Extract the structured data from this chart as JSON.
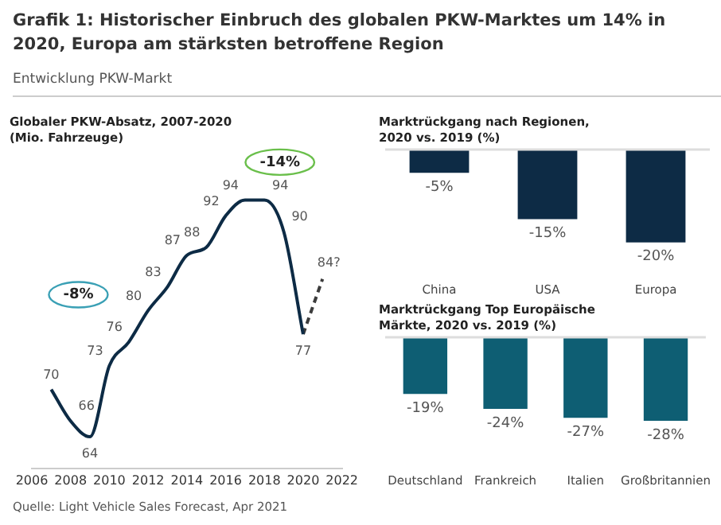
{
  "chart_data": [
    {
      "type": "other",
      "title": "Grafik 1: Historischer Einbruch des globalen PKW-Marktes um 14% in 2020, Europa am stärksten betroffene Region",
      "subtitle": "Entwicklung PKW-Markt"
    },
    {
      "type": "line",
      "title": "Globaler PKW-Absatz, 2007-2020",
      "subtitle": "(Mio. Fahrzeuge)",
      "x": [
        2007,
        2008,
        2009,
        2010,
        2011,
        2012,
        2013,
        2014,
        2015,
        2016,
        2017,
        2018,
        2019,
        2020
      ],
      "xlim": [
        2006,
        2022
      ],
      "xticks": [
        2006,
        2008,
        2010,
        2012,
        2014,
        2016,
        2018,
        2020,
        2022
      ],
      "grid": false,
      "legend": false,
      "marker": "none",
      "data_labels": true,
      "series": [
        {
          "color": "#0d2b45",
          "values": [
            70,
            66,
            64,
            73,
            76,
            80,
            83,
            87,
            88,
            92,
            94,
            94,
            90,
            77
          ]
        },
        {
          "color": "#3c3c3c",
          "x": [
            2020,
            2021
          ],
          "values": [
            77,
            84
          ],
          "line_style": "dashed",
          "value_labels": [
            null,
            "84?"
          ]
        }
      ],
      "annotations": [
        "-8%",
        "-14%"
      ]
    },
    {
      "type": "bar",
      "title": "Marktrückgang nach Regionen, 2020 vs. 2019 (%)",
      "categories": [
        "China",
        "USA",
        "Europa"
      ],
      "values": [
        -5,
        -15,
        -20
      ],
      "color": "#0d2b45",
      "value_labels": [
        "-5%",
        "-15%",
        "-20%"
      ],
      "grid": false,
      "legend": false
    },
    {
      "type": "bar",
      "title": "Marktrückgang Top Europäische Märkte, 2020 vs. 2019 (%)",
      "categories": [
        "Deutschland",
        "Frankreich",
        "Italien",
        "Großbritannien"
      ],
      "values": [
        -19,
        -24,
        -27,
        -28
      ],
      "color": "#0e5e73",
      "value_labels": [
        "-19%",
        "-24%",
        "-27%",
        "-28%"
      ],
      "grid": false,
      "legend": false
    },
    {
      "type": "other",
      "annotations": [
        "Quelle: Light Vehicle Sales Forecast, Apr 2021"
      ]
    }
  ]
}
